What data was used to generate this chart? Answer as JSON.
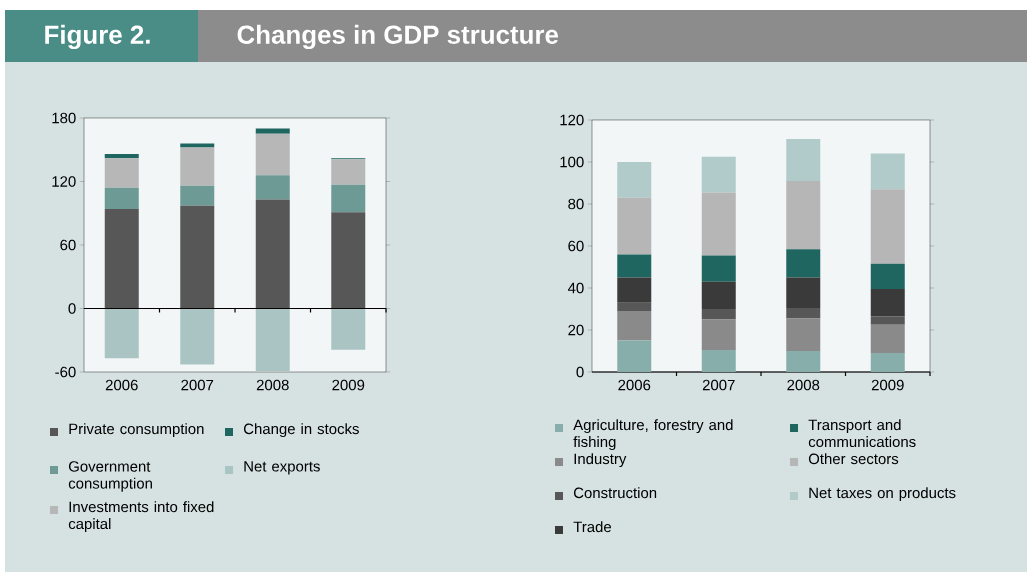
{
  "chart_data": [
    {
      "type": "bar",
      "title": "Changes in GDP structure",
      "annotations": [
        "Figure 2."
      ],
      "stacked": true,
      "legend": "bottom",
      "categories": [
        "2006",
        "2007",
        "2008",
        "2009"
      ],
      "ylim": [
        -60,
        180
      ],
      "yticks": [
        -60,
        0,
        60,
        120,
        180
      ],
      "series": [
        {
          "name": "Private consumption",
          "color": "#575757",
          "values": [
            94,
            97,
            103,
            91
          ]
        },
        {
          "name": "Government consumption",
          "color": "#6e9a96",
          "values": [
            20,
            19,
            23,
            26
          ]
        },
        {
          "name": "Investments into fixed capital",
          "color": "#b7b7b7",
          "values": [
            28,
            36,
            39,
            24
          ]
        },
        {
          "name": "Change in stocks",
          "color": "#1f6660",
          "values": [
            4,
            4,
            5,
            1
          ]
        },
        {
          "name": "Net exports",
          "color": "#a9c4c3",
          "values": [
            -47,
            -53,
            -59,
            -39
          ]
        }
      ]
    },
    {
      "type": "bar",
      "stacked": true,
      "legend": "bottom",
      "categories": [
        "2006",
        "2007",
        "2008",
        "2009"
      ],
      "ylim": [
        0,
        120
      ],
      "yticks": [
        0,
        20,
        40,
        60,
        80,
        100,
        120
      ],
      "series": [
        {
          "name": "Agriculture, forestry and fishing",
          "color": "#87aeaa",
          "values": [
            15,
            10.5,
            10,
            9
          ]
        },
        {
          "name": "Industry",
          "color": "#8a8a8a",
          "values": [
            14,
            14.5,
            15.5,
            13.5
          ]
        },
        {
          "name": "Construction",
          "color": "#575757",
          "values": [
            4,
            5,
            5,
            4
          ]
        },
        {
          "name": "Trade",
          "color": "#3a3a3a",
          "values": [
            12,
            13,
            14.5,
            13
          ]
        },
        {
          "name": "Transport and communications",
          "color": "#1f6660",
          "values": [
            11,
            12.5,
            13.5,
            12
          ]
        },
        {
          "name": "Other sectors",
          "color": "#b6b6b6",
          "values": [
            27,
            30,
            32.5,
            35.5
          ]
        },
        {
          "name": "Net taxes on products",
          "color": "#b0cbca",
          "values": [
            17,
            17,
            20,
            17
          ]
        }
      ]
    }
  ]
}
